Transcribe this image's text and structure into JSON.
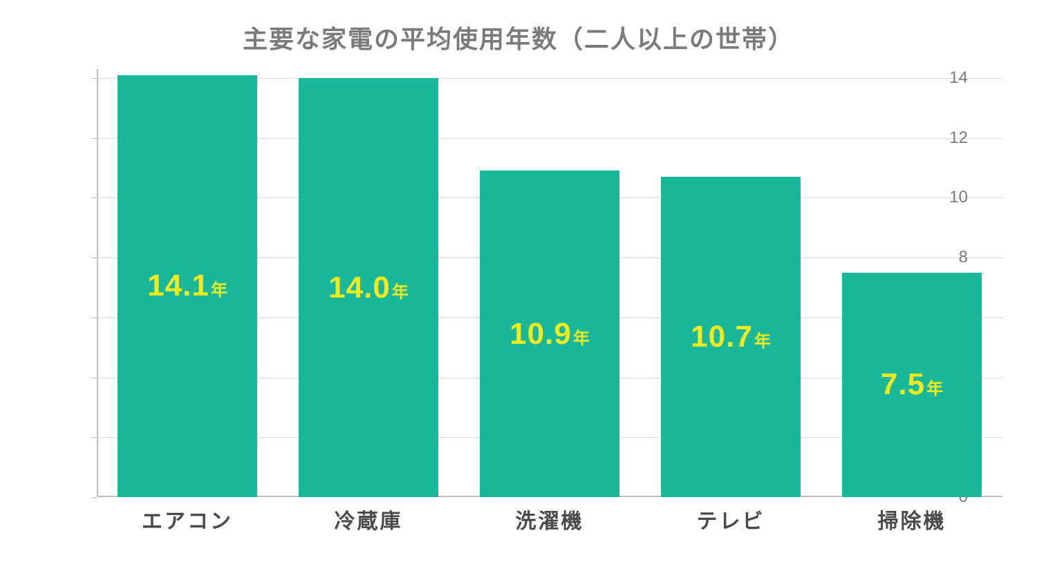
{
  "chart": {
    "type": "bar",
    "title": "主要な家電の平均使用年数（二人以上の世帯）",
    "title_color": "#7a7a7a",
    "title_fontsize": 36,
    "background_color": "#ffffff",
    "categories": [
      "エアコン",
      "冷蔵庫",
      "洗濯機",
      "テレビ",
      "掃除機"
    ],
    "values": [
      14.1,
      14.0,
      10.9,
      10.7,
      7.5
    ],
    "value_display": [
      "14.1",
      "14.0",
      "10.9",
      "10.7",
      "7.5"
    ],
    "value_unit": "年",
    "bar_color": "#1ab89a",
    "value_label_color": "#f3ea1e",
    "value_label_fontsize": 44,
    "value_unit_fontsize": 24,
    "x_label_color": "#4a4a4a",
    "x_label_fontsize": 30,
    "y_label_color": "#7a7a7a",
    "y_label_fontsize": 24,
    "grid_color": "#d9d9d9",
    "axis_color": "#bdbdbd",
    "ylim": [
      0,
      14.3
    ],
    "yticks": [
      0,
      2,
      4,
      6,
      8,
      10,
      12,
      14
    ],
    "bar_width_ratio": 0.77
  }
}
